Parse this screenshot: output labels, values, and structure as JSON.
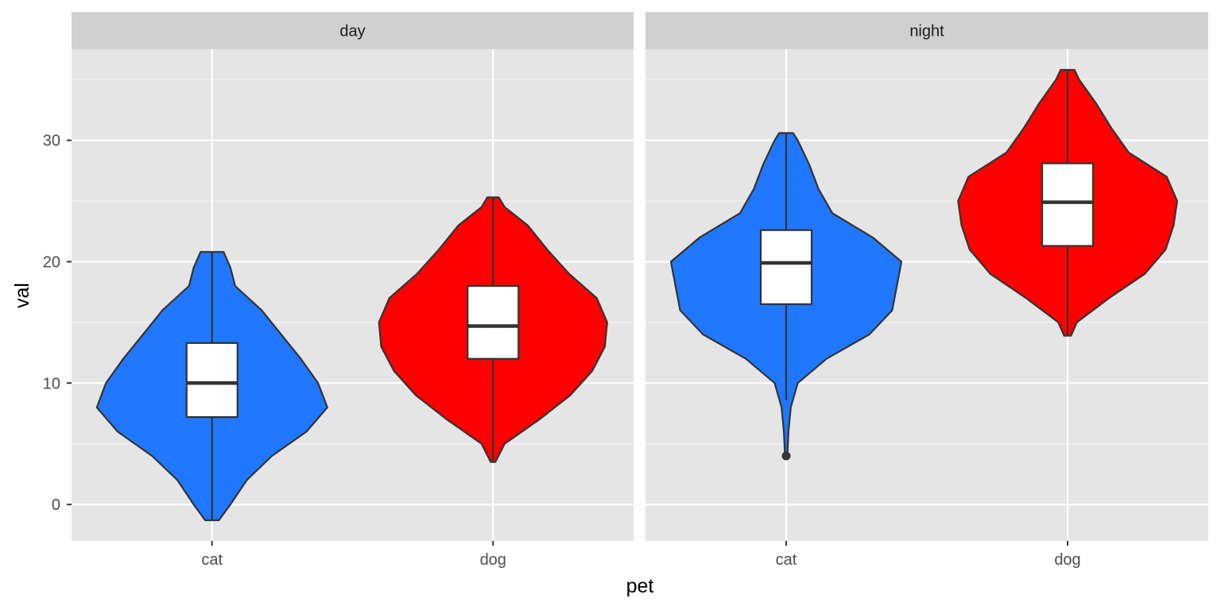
{
  "chart_data": {
    "type": "violin",
    "xlabel": "pet",
    "ylabel": "val",
    "ylim": [
      -3,
      37.5
    ],
    "yticks": [
      0,
      10,
      20,
      30
    ],
    "categories": [
      "cat",
      "dog"
    ],
    "fills": {
      "cat": "#1f78ff",
      "dog": "#ff0000"
    },
    "grid": true,
    "panels": [
      {
        "facet": "day",
        "groups": [
          {
            "category": "cat",
            "min": -1.3,
            "q1": 7.2,
            "median": 10.0,
            "q3": 13.3,
            "max": 20.8,
            "outliers": [],
            "density": [
              [
                -1.3,
                0.06
              ],
              [
                0,
                0.16
              ],
              [
                2,
                0.3
              ],
              [
                4,
                0.52
              ],
              [
                6,
                0.82
              ],
              [
                8,
                1.0
              ],
              [
                10,
                0.92
              ],
              [
                12,
                0.77
              ],
              [
                14,
                0.6
              ],
              [
                16,
                0.43
              ],
              [
                18,
                0.2
              ],
              [
                19.5,
                0.16
              ],
              [
                20.8,
                0.1
              ]
            ]
          },
          {
            "category": "dog",
            "min": 3.5,
            "q1": 12.0,
            "median": 14.7,
            "q3": 18.0,
            "max": 25.3,
            "outliers": [],
            "density": [
              [
                3.5,
                0.02
              ],
              [
                5,
                0.1
              ],
              [
                7,
                0.4
              ],
              [
                9,
                0.67
              ],
              [
                11,
                0.86
              ],
              [
                13,
                0.97
              ],
              [
                15,
                0.99
              ],
              [
                17,
                0.9
              ],
              [
                19,
                0.66
              ],
              [
                21,
                0.47
              ],
              [
                23,
                0.3
              ],
              [
                24.5,
                0.1
              ],
              [
                25.3,
                0.05
              ]
            ]
          }
        ]
      },
      {
        "facet": "night",
        "groups": [
          {
            "category": "cat",
            "min": 8.6,
            "q1": 16.5,
            "median": 19.9,
            "q3": 22.6,
            "max": 30.6,
            "outliers": [
              4.0
            ],
            "density": [
              [
                4.0,
                0.01
              ],
              [
                6,
                0.02
              ],
              [
                8,
                0.04
              ],
              [
                10,
                0.1
              ],
              [
                12,
                0.35
              ],
              [
                14,
                0.72
              ],
              [
                16,
                0.92
              ],
              [
                18,
                0.96
              ],
              [
                20,
                1.0
              ],
              [
                22,
                0.75
              ],
              [
                24,
                0.4
              ],
              [
                26,
                0.28
              ],
              [
                28,
                0.2
              ],
              [
                30,
                0.1
              ],
              [
                30.6,
                0.06
              ]
            ]
          },
          {
            "category": "dog",
            "min": 13.9,
            "q1": 21.3,
            "median": 24.9,
            "q3": 28.1,
            "max": 35.8,
            "outliers": [],
            "density": [
              [
                13.9,
                0.03
              ],
              [
                15,
                0.08
              ],
              [
                17,
                0.36
              ],
              [
                19,
                0.67
              ],
              [
                21,
                0.85
              ],
              [
                23,
                0.92
              ],
              [
                25,
                0.95
              ],
              [
                27,
                0.86
              ],
              [
                29,
                0.53
              ],
              [
                31,
                0.38
              ],
              [
                33,
                0.25
              ],
              [
                35,
                0.1
              ],
              [
                35.8,
                0.06
              ]
            ]
          }
        ]
      }
    ]
  }
}
